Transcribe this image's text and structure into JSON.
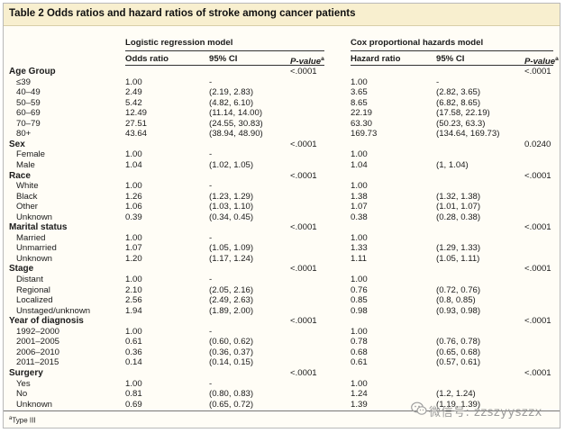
{
  "title": "Table 2 Odds ratios and hazard ratios of stroke among cancer patients",
  "models": {
    "logistic": {
      "name": "Logistic regression model",
      "col_ratio": "Odds ratio",
      "col_ci": "95% CI",
      "col_p": "P-value",
      "col_p_sup": "a"
    },
    "cox": {
      "name": "Cox proportional hazards model",
      "col_ratio": "Hazard ratio",
      "col_ci": "95% CI",
      "col_p": "P-value",
      "col_p_sup": "a"
    }
  },
  "rows": [
    {
      "label": "Age Group",
      "group": true,
      "or_p": "<.0001",
      "hr_p": "<.0001"
    },
    {
      "label": "≤39",
      "or": "1.00",
      "or_ci": "-",
      "hr": "1.00",
      "hr_ci": "-"
    },
    {
      "label": "40–49",
      "or": "2.49",
      "or_ci": "(2.19, 2.83)",
      "hr": "3.65",
      "hr_ci": "(2.82, 3.65)"
    },
    {
      "label": "50–59",
      "or": "5.42",
      "or_ci": "(4.82, 6.10)",
      "hr": "8.65",
      "hr_ci": "(6.82, 8.65)"
    },
    {
      "label": "60–69",
      "or": "12.49",
      "or_ci": "(11.14, 14.00)",
      "hr": "22.19",
      "hr_ci": "(17.58, 22.19)"
    },
    {
      "label": "70–79",
      "or": "27.51",
      "or_ci": "(24.55, 30.83)",
      "hr": "63.30",
      "hr_ci": "(50.23, 63.3)"
    },
    {
      "label": "80+",
      "or": "43.64",
      "or_ci": "(38.94, 48.90)",
      "hr": "169.73",
      "hr_ci": "(134.64, 169.73)"
    },
    {
      "label": "Sex",
      "group": true,
      "or_p": "<.0001",
      "hr_p": "0.0240"
    },
    {
      "label": "Female",
      "or": "1.00",
      "or_ci": "-",
      "hr": "1.00",
      "hr_ci": ""
    },
    {
      "label": "Male",
      "or": "1.04",
      "or_ci": "(1.02, 1.05)",
      "hr": "1.04",
      "hr_ci": "(1, 1.04)"
    },
    {
      "label": "Race",
      "group": true,
      "or_p": "<.0001",
      "hr_p": "<.0001"
    },
    {
      "label": "White",
      "or": "1.00",
      "or_ci": "-",
      "hr": "1.00",
      "hr_ci": ""
    },
    {
      "label": "Black",
      "or": "1.26",
      "or_ci": "(1.23, 1.29)",
      "hr": "1.38",
      "hr_ci": "(1.32, 1.38)"
    },
    {
      "label": "Other",
      "or": "1.06",
      "or_ci": "(1.03, 1.10)",
      "hr": "1.07",
      "hr_ci": "(1.01, 1.07)"
    },
    {
      "label": "Unknown",
      "or": "0.39",
      "or_ci": "(0.34, 0.45)",
      "hr": "0.38",
      "hr_ci": "(0.28, 0.38)"
    },
    {
      "label": "Marital status",
      "group": true,
      "or_p": "<.0001",
      "hr_p": "<.0001"
    },
    {
      "label": "Married",
      "or": "1.00",
      "or_ci": "-",
      "hr": "1.00",
      "hr_ci": ""
    },
    {
      "label": "Unmarried",
      "or": "1.07",
      "or_ci": "(1.05, 1.09)",
      "hr": "1.33",
      "hr_ci": "(1.29, 1.33)"
    },
    {
      "label": "Unknown",
      "or": "1.20",
      "or_ci": "(1.17, 1.24)",
      "hr": "1.11",
      "hr_ci": "(1.05, 1.11)"
    },
    {
      "label": "Stage",
      "group": true,
      "or_p": "<.0001",
      "hr_p": "<.0001"
    },
    {
      "label": "Distant",
      "or": "1.00",
      "or_ci": "-",
      "hr": "1.00",
      "hr_ci": ""
    },
    {
      "label": "Regional",
      "or": "2.10",
      "or_ci": "(2.05, 2.16)",
      "hr": "0.76",
      "hr_ci": "(0.72, 0.76)"
    },
    {
      "label": "Localized",
      "or": "2.56",
      "or_ci": "(2.49, 2.63)",
      "hr": "0.85",
      "hr_ci": "(0.8, 0.85)"
    },
    {
      "label": "Unstaged/unknown",
      "or": "1.94",
      "or_ci": "(1.89, 2.00)",
      "hr": "0.98",
      "hr_ci": "(0.93, 0.98)"
    },
    {
      "label": "Year of diagnosis",
      "group": true,
      "or_p": "<.0001",
      "hr_p": "<.0001"
    },
    {
      "label": "1992–2000",
      "or": "1.00",
      "or_ci": "-",
      "hr": "1.00",
      "hr_ci": ""
    },
    {
      "label": "2001–2005",
      "or": "0.61",
      "or_ci": "(0.60, 0.62)",
      "hr": "0.78",
      "hr_ci": "(0.76, 0.78)"
    },
    {
      "label": "2006–2010",
      "or": "0.36",
      "or_ci": "(0.36, 0.37)",
      "hr": "0.68",
      "hr_ci": "(0.65, 0.68)"
    },
    {
      "label": "2011–2015",
      "or": "0.14",
      "or_ci": "(0.14, 0.15)",
      "hr": "0.61",
      "hr_ci": "(0.57, 0.61)"
    },
    {
      "label": "Surgery",
      "group": true,
      "or_p": "<.0001",
      "hr_p": "<.0001"
    },
    {
      "label": "Yes",
      "or": "1.00",
      "or_ci": "-",
      "hr": "1.00",
      "hr_ci": ""
    },
    {
      "label": "No",
      "or": "0.81",
      "or_ci": "(0.80, 0.83)",
      "hr": "1.24",
      "hr_ci": "(1.2, 1.24)"
    },
    {
      "label": "Unknown",
      "or": "0.69",
      "or_ci": "(0.65, 0.72)",
      "hr": "1.39",
      "hr_ci": "(1.19, 1.39)"
    }
  ],
  "footnote": {
    "sup": "a",
    "text": "Type III"
  },
  "watermark": {
    "icon": "wechat-icon",
    "text": "微信号: zzszyyszzx"
  }
}
